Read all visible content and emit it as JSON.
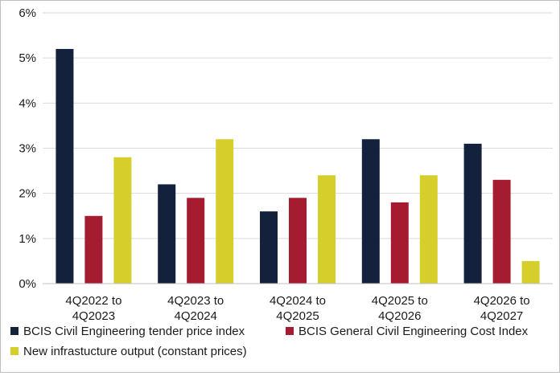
{
  "chart_data": {
    "type": "bar",
    "title": "",
    "xlabel": "",
    "ylabel": "",
    "ylim": [
      0,
      6
    ],
    "yticks": [
      0,
      1,
      2,
      3,
      4,
      5,
      6
    ],
    "ytick_labels": [
      "0%",
      "1%",
      "2%",
      "3%",
      "4%",
      "5%",
      "6%"
    ],
    "grid": true,
    "legend_position": "bottom",
    "categories": [
      [
        "4Q2022 to",
        "4Q2023"
      ],
      [
        "4Q2023 to",
        "4Q2024"
      ],
      [
        "4Q2024 to",
        "4Q2025"
      ],
      [
        "4Q2025 to",
        "4Q2026"
      ],
      [
        "4Q2026 to",
        "4Q2027"
      ]
    ],
    "series": [
      {
        "name": "BCIS Civil Engineering tender price index",
        "color": "#14213d",
        "values": [
          5.2,
          2.2,
          1.6,
          3.2,
          3.1
        ]
      },
      {
        "name": "BCIS General Civil Engineering Cost Index",
        "color": "#a51c30",
        "values": [
          1.5,
          1.9,
          1.9,
          1.8,
          2.3
        ]
      },
      {
        "name": "New infrastucture output (constant prices)",
        "color": "#d6cf2b",
        "values": [
          2.8,
          3.2,
          2.4,
          2.4,
          0.5
        ]
      }
    ]
  }
}
